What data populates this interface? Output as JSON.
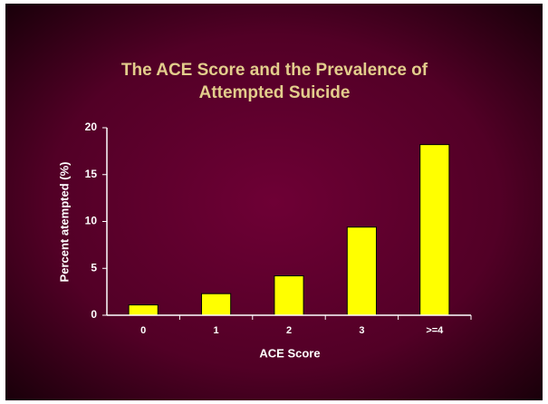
{
  "chart_data": {
    "type": "bar",
    "title": [
      "The ACE Score and the Prevalence of",
      "Attempted Suicide"
    ],
    "x_label": "ACE Score",
    "y_label": "Percent atempted (%)",
    "categories": [
      "0",
      "1",
      "2",
      "3",
      ">=4"
    ],
    "values": [
      1.1,
      2.3,
      4.2,
      9.4,
      18.2
    ],
    "color": "#ffff00",
    "ylim": [
      0,
      20
    ],
    "yticks": [
      0,
      5,
      10,
      15,
      20
    ],
    "grid": false
  }
}
